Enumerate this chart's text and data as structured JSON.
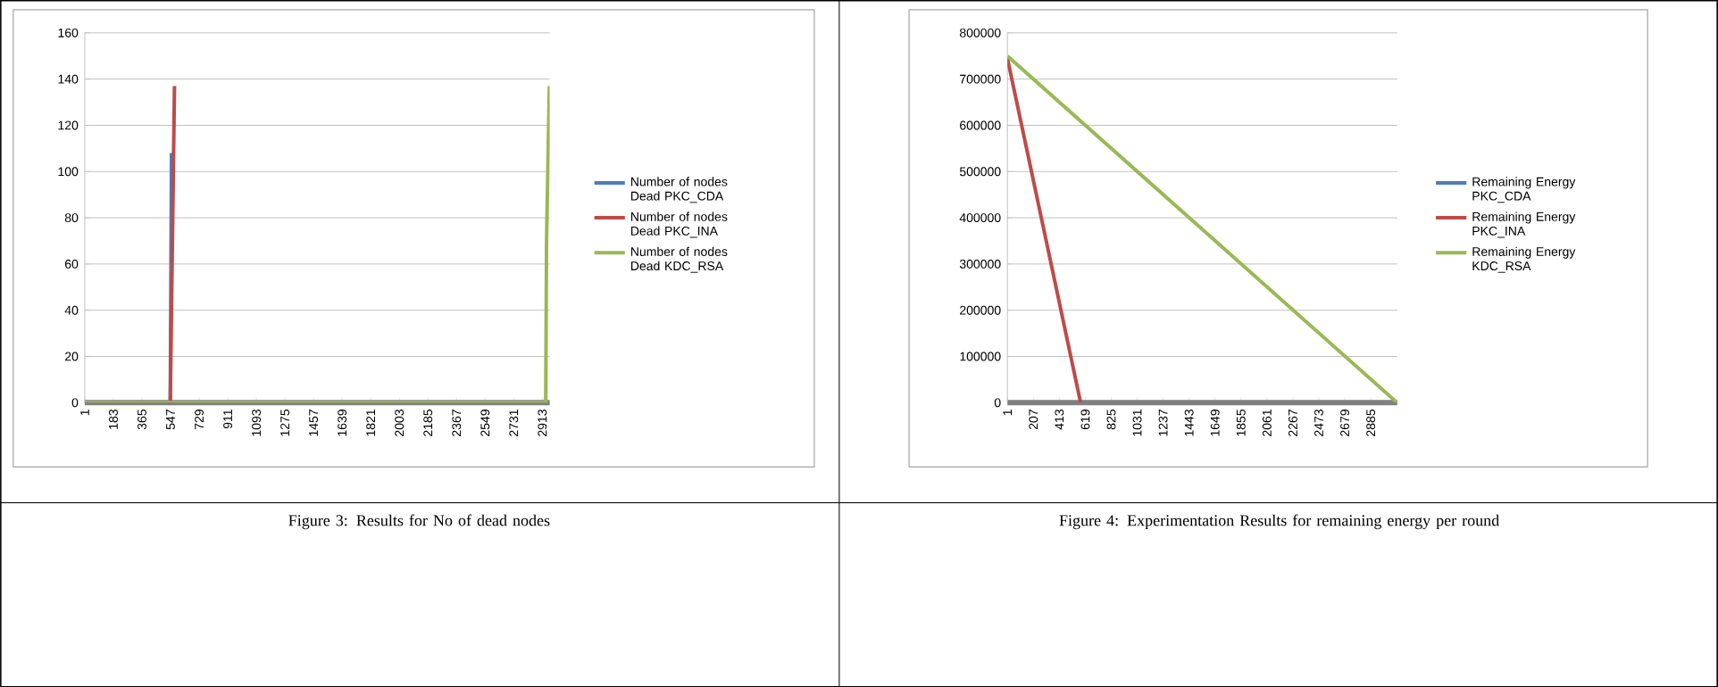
{
  "chart_data": [
    {
      "type": "line",
      "xlim": [
        1,
        2960
      ],
      "ylim": [
        0,
        160
      ],
      "xticks": [
        1,
        183,
        365,
        547,
        729,
        911,
        1093,
        1275,
        1457,
        1639,
        1821,
        2003,
        2185,
        2367,
        2549,
        2731,
        2913
      ],
      "yticks": [
        0,
        20,
        40,
        60,
        80,
        100,
        120,
        140,
        160
      ],
      "grid": "y",
      "legend": "right",
      "series": [
        {
          "name": "Number of nodes Dead PKC_CDA",
          "color": "#4a7ebb",
          "x": [
            1,
            545,
            553
          ],
          "values": [
            0,
            0,
            108
          ]
        },
        {
          "name": "Number of nodes Dead PKC_INA",
          "color": "#be4b48",
          "x": [
            1,
            545,
            572
          ],
          "values": [
            0,
            0,
            137
          ]
        },
        {
          "name": "Number of nodes Dead KDC_RSA",
          "color": "#98b954",
          "x": [
            1,
            2935,
            2940,
            2958
          ],
          "values": [
            0,
            0,
            70,
            137
          ]
        }
      ],
      "annotations": [
        "Figure 3:  Results for No of dead nodes"
      ]
    },
    {
      "type": "line",
      "xlim": [
        1,
        3095
      ],
      "ylim": [
        0,
        800000
      ],
      "xticks": [
        1,
        207,
        413,
        619,
        825,
        1031,
        1237,
        1443,
        1649,
        1855,
        2061,
        2267,
        2473,
        2679,
        2885
      ],
      "yticks": [
        0,
        100000,
        200000,
        300000,
        400000,
        500000,
        600000,
        700000,
        800000
      ],
      "grid": "y",
      "legend": "right",
      "series": [
        {
          "name": "Remaining Energy PKC_CDA",
          "color": "#4a7ebb",
          "values": [
            null,
            null
          ]
        },
        {
          "name": "Remaining Energy PKC_INA",
          "color": "#be4b48",
          "x": [
            1,
            582
          ],
          "values": [
            745000,
            0
          ]
        },
        {
          "name": "Remaining Energy KDC_RSA",
          "color": "#98b954",
          "x": [
            1,
            3095
          ],
          "values": [
            750000,
            0
          ]
        }
      ],
      "annotations": [
        "Figure 4:  Experimentation Results for remaining energy per round"
      ]
    }
  ]
}
